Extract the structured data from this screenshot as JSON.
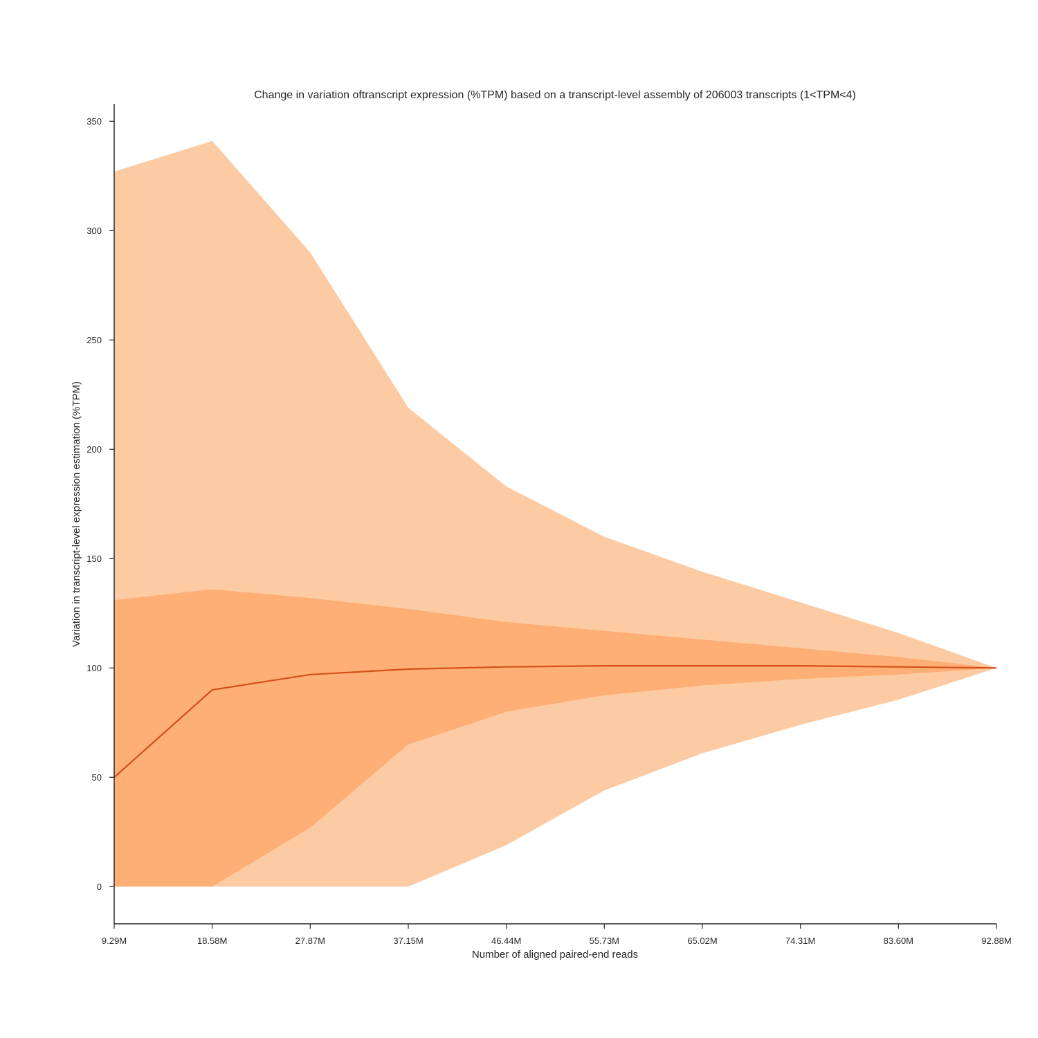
{
  "chart_data": {
    "type": "area",
    "title": "Change in variation oftranscript expression (%TPM) based on a transcript-level assembly of 206003 transcripts (1<TPM<4)",
    "xlabel": "Number of aligned paired-end reads",
    "ylabel": "Variation in transcript-level expression estimation (%TPM)",
    "categories": [
      "9.29M",
      "18.58M",
      "27.87M",
      "37.15M",
      "46.44M",
      "55.73M",
      "65.02M",
      "74.31M",
      "83.60M",
      "92.88M"
    ],
    "y_ticks": [
      0,
      50,
      100,
      150,
      200,
      250,
      300,
      350
    ],
    "ylim": [
      -17,
      358
    ],
    "grid": false,
    "colors": {
      "outer_band": "#fdcba3",
      "inner_band": "#fdaf75",
      "median_line": "#d4501c",
      "axis": "#262626"
    },
    "series": [
      {
        "role": "outer_upper",
        "values": [
          327,
          341,
          290,
          219,
          183,
          160,
          144,
          130,
          116,
          100
        ]
      },
      {
        "role": "inner_upper",
        "values": [
          131,
          136,
          132,
          127,
          121,
          117,
          113,
          109,
          105,
          100
        ]
      },
      {
        "role": "median",
        "values": [
          50,
          90,
          97,
          99.5,
          100.5,
          101,
          101,
          101,
          100.5,
          100
        ]
      },
      {
        "role": "inner_lower",
        "values": [
          0,
          0,
          27,
          65,
          80,
          87.5,
          92,
          95,
          97,
          100
        ]
      },
      {
        "role": "outer_lower",
        "values": [
          0,
          0,
          0,
          0,
          19,
          44,
          61,
          74,
          85.5,
          100
        ]
      }
    ]
  }
}
